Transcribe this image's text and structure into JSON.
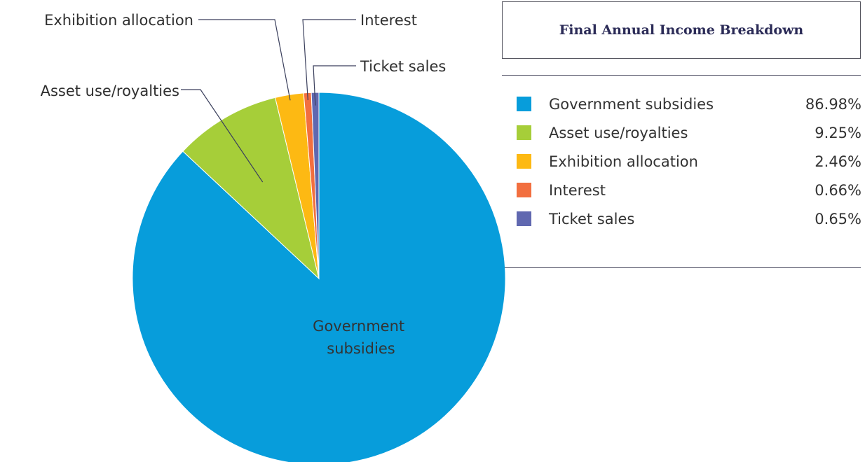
{
  "chart_data": {
    "type": "pie",
    "title": "Final Annual Income Breakdown",
    "slices": [
      {
        "label": "Government subsidies",
        "value": 86.98,
        "display": "86.98%",
        "color": "#079ddb",
        "callout_text": "Government subsidies"
      },
      {
        "label": "Asset use/royalties",
        "value": 9.25,
        "display": "9.25%",
        "color": "#a6ce39",
        "callout_text": "Asset use/royalties"
      },
      {
        "label": "Exhibition allocation",
        "value": 2.46,
        "display": "2.46%",
        "color": "#fdb913",
        "callout_text": "Exhibition allocation"
      },
      {
        "label": "Interest",
        "value": 0.66,
        "display": "0.66%",
        "color": "#f26f3f",
        "callout_text": "Interest"
      },
      {
        "label": "Ticket sales",
        "value": 0.65,
        "display": "0.65%",
        "color": "#6068b0",
        "callout_text": "Ticket sales"
      }
    ],
    "inside_label_lines": [
      "Government",
      "subsidies"
    ],
    "legend_placement": "right"
  }
}
